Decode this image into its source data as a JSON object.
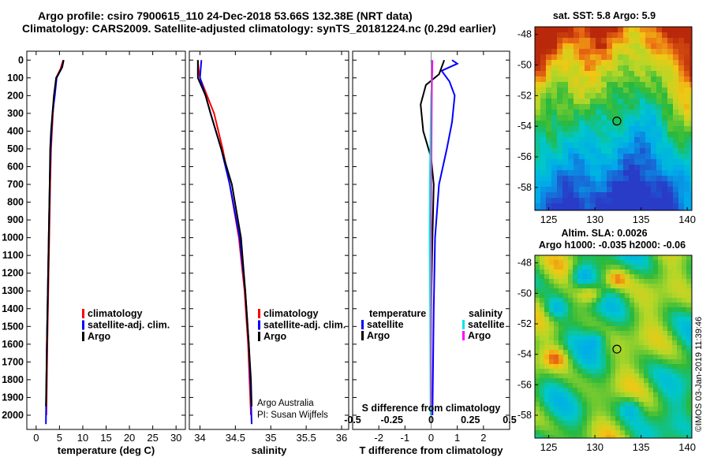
{
  "header": {
    "title_line1": "Argo profile: csiro 7900615_110 24-Dec-2018 53.66S 132.38E (NRT data)",
    "title_line2": "Climatology: CARS2009. Satellite-adjusted climatology: synTS_20181224.nc (0.29d earlier)"
  },
  "colors": {
    "climatology": "#ff0000",
    "satellite": "#0000ff",
    "argo": "#000000",
    "satellite_salinity": "#00e5e5",
    "argo_salinity": "#ff00ff"
  },
  "chart_data": [
    {
      "type": "line",
      "panel": "temperature",
      "xlabel": "temperature (deg C)",
      "xlim": [
        -2,
        32
      ],
      "xticks": [
        "0",
        "5",
        "10",
        "15",
        "20",
        "25",
        "30"
      ],
      "ylim": [
        2080,
        -50
      ],
      "yticks": [
        "0",
        "100",
        "200",
        "300",
        "400",
        "500",
        "600",
        "700",
        "800",
        "900",
        "1000",
        "1100",
        "1200",
        "1300",
        "1400",
        "1500",
        "1600",
        "1700",
        "1800",
        "1900",
        "2000"
      ],
      "legend": [
        "climatology",
        "satellite-adj. clim.",
        "Argo"
      ],
      "series": [
        {
          "name": "climatology",
          "color": "climatology",
          "points": [
            [
              5.8,
              0
            ],
            [
              5.2,
              50
            ],
            [
              4.3,
              100
            ],
            [
              3.9,
              200
            ],
            [
              3.6,
              300
            ],
            [
              3.4,
              400
            ],
            [
              3.2,
              500
            ],
            [
              3.0,
              700
            ],
            [
              2.8,
              1000
            ],
            [
              2.6,
              1300
            ],
            [
              2.4,
              1600
            ],
            [
              2.3,
              1800
            ],
            [
              2.2,
              2000
            ]
          ]
        },
        {
          "name": "satellite-adj. clim.",
          "color": "satellite",
          "points": [
            [
              5.9,
              0
            ],
            [
              5.4,
              50
            ],
            [
              4.4,
              100
            ],
            [
              4.0,
              200
            ],
            [
              3.5,
              300
            ],
            [
              3.3,
              400
            ],
            [
              3.1,
              500
            ],
            [
              2.9,
              700
            ],
            [
              2.7,
              1000
            ],
            [
              2.5,
              1300
            ],
            [
              2.3,
              1600
            ],
            [
              2.2,
              1800
            ],
            [
              2.1,
              2050
            ]
          ]
        },
        {
          "name": "Argo",
          "color": "argo",
          "points": [
            [
              5.9,
              0
            ],
            [
              5.6,
              40
            ],
            [
              4.3,
              100
            ],
            [
              3.8,
              200
            ],
            [
              3.5,
              300
            ],
            [
              3.2,
              400
            ],
            [
              3.0,
              500
            ],
            [
              2.9,
              700
            ],
            [
              2.7,
              1000
            ],
            [
              2.5,
              1300
            ],
            [
              2.3,
              1600
            ],
            [
              2.2,
              1800
            ],
            [
              2.1,
              1950
            ]
          ]
        }
      ]
    },
    {
      "type": "line",
      "panel": "salinity",
      "xlabel": "salinity",
      "xlim": [
        33.85,
        36.1
      ],
      "xticks": [
        "34",
        "34.5",
        "35",
        "35.5",
        "36"
      ],
      "ylim": [
        2080,
        -50
      ],
      "legend": [
        "climatology",
        "satellite-adj. clim.",
        "Argo"
      ],
      "annotations": [
        "Argo Australia",
        "PI: Susan Wijffels"
      ],
      "series": [
        {
          "name": "climatology",
          "color": "climatology",
          "points": [
            [
              33.97,
              0
            ],
            [
              33.98,
              50
            ],
            [
              34.0,
              100
            ],
            [
              34.1,
              200
            ],
            [
              34.2,
              300
            ],
            [
              34.32,
              500
            ],
            [
              34.42,
              700
            ],
            [
              34.55,
              1000
            ],
            [
              34.63,
              1300
            ],
            [
              34.68,
              1600
            ],
            [
              34.71,
              1900
            ],
            [
              34.72,
              2000
            ]
          ]
        },
        {
          "name": "satellite-adj. clim.",
          "color": "satellite",
          "points": [
            [
              34.02,
              0
            ],
            [
              34.0,
              100
            ],
            [
              34.08,
              200
            ],
            [
              34.15,
              300
            ],
            [
              34.3,
              500
            ],
            [
              34.42,
              700
            ],
            [
              34.56,
              1000
            ],
            [
              34.64,
              1300
            ],
            [
              34.69,
              1600
            ],
            [
              34.72,
              1900
            ],
            [
              34.73,
              2050
            ]
          ]
        },
        {
          "name": "Argo",
          "color": "argo",
          "points": [
            [
              33.97,
              0
            ],
            [
              33.97,
              100
            ],
            [
              34.08,
              200
            ],
            [
              34.15,
              300
            ],
            [
              34.3,
              500
            ],
            [
              34.45,
              700
            ],
            [
              34.58,
              1000
            ],
            [
              34.64,
              1300
            ],
            [
              34.69,
              1600
            ],
            [
              34.72,
              1800
            ],
            [
              34.73,
              1950
            ]
          ]
        }
      ]
    },
    {
      "type": "line",
      "panel": "difference",
      "xlabel": "T difference from climatology",
      "xlabel_top": "S difference from climatology",
      "xlim": [
        -3.0,
        3.0
      ],
      "xticks": [
        "-2",
        "-1",
        "0",
        "1",
        "2"
      ],
      "xticks_top": [
        "-0.5",
        "-0.25",
        "0",
        "0.25",
        "0.5"
      ],
      "ylim": [
        2080,
        -50
      ],
      "legend_temperature_title": "temperature",
      "legend_salinity_title": "salinity",
      "legend": [
        "satellite",
        "Argo",
        "satellite",
        "Argo"
      ],
      "series": [
        {
          "name": "temperature satellite",
          "color": "satellite",
          "points": [
            [
              0.8,
              0
            ],
            [
              1.0,
              20
            ],
            [
              0.4,
              60
            ],
            [
              0.7,
              120
            ],
            [
              0.9,
              200
            ],
            [
              0.8,
              350
            ],
            [
              0.6,
              500
            ],
            [
              0.3,
              700
            ],
            [
              0.15,
              1000
            ],
            [
              0.1,
              1400
            ],
            [
              0.05,
              2000
            ]
          ]
        },
        {
          "name": "temperature Argo",
          "color": "argo",
          "points": [
            [
              0.5,
              0
            ],
            [
              0.3,
              80
            ],
            [
              -0.2,
              140
            ],
            [
              -0.4,
              250
            ],
            [
              -0.3,
              400
            ],
            [
              0.0,
              550
            ],
            [
              0.1,
              700
            ],
            [
              0.05,
              1000
            ],
            [
              0.0,
              1400
            ],
            [
              0.0,
              1950
            ]
          ]
        },
        {
          "name": "salinity satellite",
          "color": "satellite_salinity",
          "points": [
            [
              0.0,
              0
            ],
            [
              0.05,
              60
            ],
            [
              0.0,
              200
            ],
            [
              -0.02,
              400
            ],
            [
              -0.05,
              700
            ],
            [
              -0.06,
              1000
            ],
            [
              -0.04,
              1400
            ],
            [
              -0.02,
              2000
            ]
          ]
        },
        {
          "name": "salinity Argo",
          "color": "argo_salinity",
          "points": [
            [
              0.05,
              0
            ],
            [
              0.03,
              120
            ],
            [
              0.02,
              300
            ],
            [
              0.01,
              600
            ],
            [
              0.0,
              900
            ],
            [
              0.01,
              1300
            ],
            [
              0.0,
              1600
            ],
            [
              0.0,
              1950
            ]
          ]
        }
      ]
    },
    {
      "type": "heatmap",
      "panel": "map-sst",
      "title": "sat. SST: 5.8 Argo: 5.9",
      "xlim": [
        123.5,
        140.5
      ],
      "ylim": [
        -59.5,
        -47.5
      ],
      "xticks": [
        "125",
        "130",
        "135",
        "140"
      ],
      "yticks": [
        "-48",
        "-50",
        "-52",
        "-54",
        "-56",
        "-58"
      ],
      "marker": {
        "lon": 132.38,
        "lat": -53.66
      }
    },
    {
      "type": "heatmap",
      "panel": "map-sla",
      "title": "Altim. SLA: 0.0026",
      "subtitle": "Argo h1000: -0.035 h2000: -0.06",
      "xlim": [
        123.5,
        140.5
      ],
      "ylim": [
        -59.5,
        -47.5
      ],
      "xticks": [
        "125",
        "130",
        "135",
        "140"
      ],
      "yticks": [
        "-48",
        "-50",
        "-52",
        "-54",
        "-56",
        "-58"
      ],
      "marker": {
        "lon": 132.38,
        "lat": -53.66
      }
    }
  ],
  "footer": {
    "credit": "©IMOS 03-Jan-2019 11:39:46"
  }
}
